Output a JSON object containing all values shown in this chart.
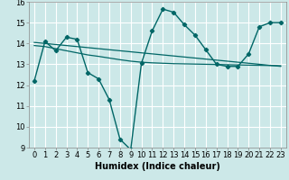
{
  "title": "",
  "xlabel": "Humidex (Indice chaleur)",
  "bg_color": "#cce8e8",
  "grid_color": "#ffffff",
  "line_color": "#006666",
  "xlim": [
    -0.5,
    23.5
  ],
  "ylim": [
    9,
    16
  ],
  "xticks": [
    0,
    1,
    2,
    3,
    4,
    5,
    6,
    7,
    8,
    9,
    10,
    11,
    12,
    13,
    14,
    15,
    16,
    17,
    18,
    19,
    20,
    21,
    22,
    23
  ],
  "yticks": [
    9,
    10,
    11,
    12,
    13,
    14,
    15,
    16
  ],
  "humidex_x": [
    0,
    1,
    2,
    3,
    4,
    5,
    6,
    7,
    8,
    9,
    10,
    11,
    12,
    13,
    14,
    15,
    16,
    17,
    18,
    19,
    20,
    21,
    22,
    23
  ],
  "humidex_y": [
    12.2,
    14.1,
    13.65,
    14.3,
    14.2,
    12.6,
    12.3,
    11.3,
    9.4,
    8.9,
    13.05,
    14.6,
    15.65,
    15.5,
    14.9,
    14.4,
    13.7,
    13.0,
    12.9,
    12.9,
    13.5,
    14.8,
    15.0,
    15.0
  ],
  "trend_x": [
    0,
    23
  ],
  "trend_y": [
    14.05,
    12.9
  ],
  "smooth_x": [
    0,
    1,
    2,
    3,
    4,
    5,
    6,
    7,
    8,
    9,
    10,
    11,
    12,
    13,
    14,
    15,
    16,
    17,
    18,
    19,
    20,
    21,
    22,
    23
  ],
  "smooth_y": [
    13.9,
    13.85,
    13.75,
    13.65,
    13.55,
    13.45,
    13.38,
    13.3,
    13.22,
    13.15,
    13.1,
    13.07,
    13.05,
    13.03,
    13.02,
    13.01,
    13.0,
    12.99,
    12.98,
    12.97,
    12.96,
    12.95,
    12.94,
    12.93
  ],
  "fontsize_xlabel": 7,
  "fontsize_ticks": 6
}
